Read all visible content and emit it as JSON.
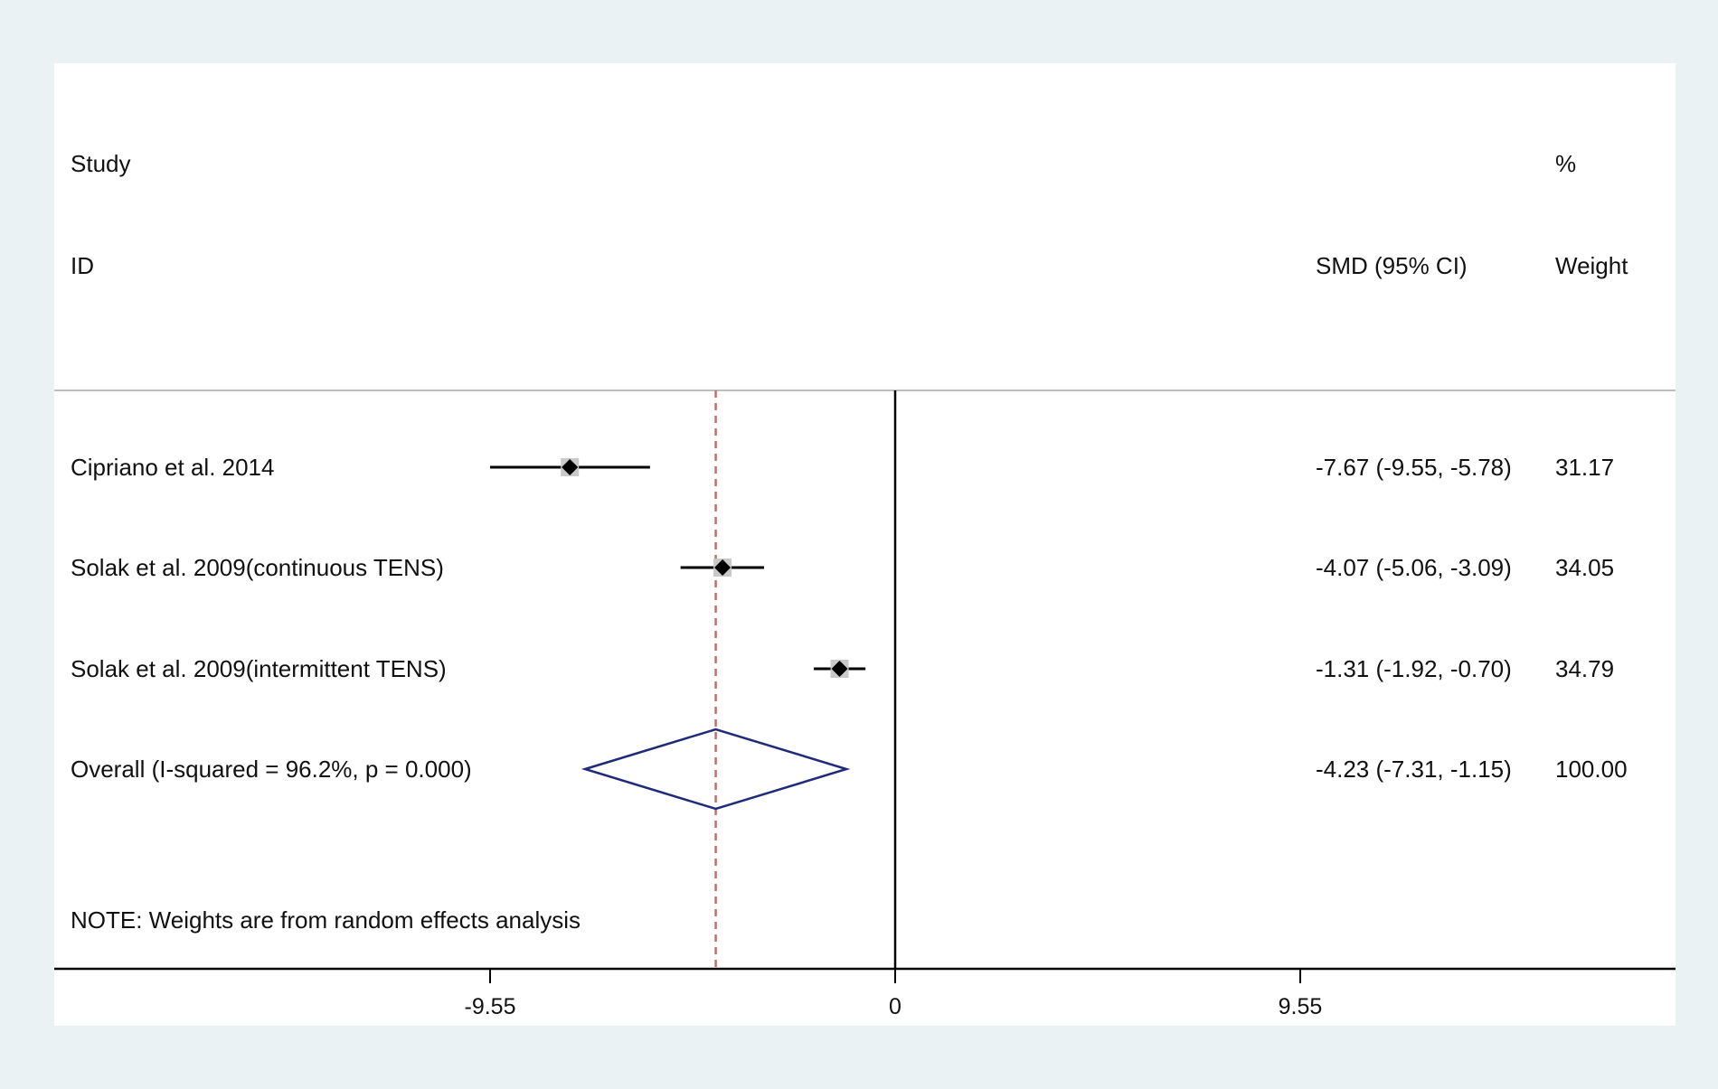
{
  "headers": {
    "study": "Study",
    "id": "ID",
    "smd": "SMD (95% CI)",
    "pct": "%",
    "weight": "Weight"
  },
  "note": "NOTE: Weights are from random effects analysis",
  "colors": {
    "background": "#eaf2f3",
    "panel": "#ffffff",
    "estimate": "#000000",
    "overall_diamond": "#1f2a7a",
    "pooled_line": "#c0706a",
    "separator": "#bfbfbf"
  },
  "chart_data": {
    "type": "forest",
    "xlim": [
      -17,
      17
    ],
    "xticks": [
      -9.55,
      0,
      9.55
    ],
    "xtick_labels": [
      "-9.55",
      "0",
      "9.55"
    ],
    "null_line": 0,
    "pooled_line": -4.23,
    "studies": [
      {
        "label": "Cipriano et al. 2014",
        "smd": -7.67,
        "lower": -9.55,
        "upper": -5.78,
        "ci_text": "-7.67 (-9.55, -5.78)",
        "weight": "31.17"
      },
      {
        "label": "Solak et al. 2009(continuous TENS)",
        "smd": -4.07,
        "lower": -5.06,
        "upper": -3.09,
        "ci_text": "-4.07 (-5.06, -3.09)",
        "weight": "34.05"
      },
      {
        "label": "Solak et al. 2009(intermittent TENS)",
        "smd": -1.31,
        "lower": -1.92,
        "upper": -0.7,
        "ci_text": "-1.31 (-1.92, -0.70)",
        "weight": "34.79"
      }
    ],
    "overall": {
      "label": "Overall  (I-squared = 96.2%, p = 0.000)",
      "smd": -4.23,
      "lower": -7.31,
      "upper": -1.15,
      "ci_text": "-4.23 (-7.31, -1.15)",
      "weight": "100.00"
    }
  }
}
